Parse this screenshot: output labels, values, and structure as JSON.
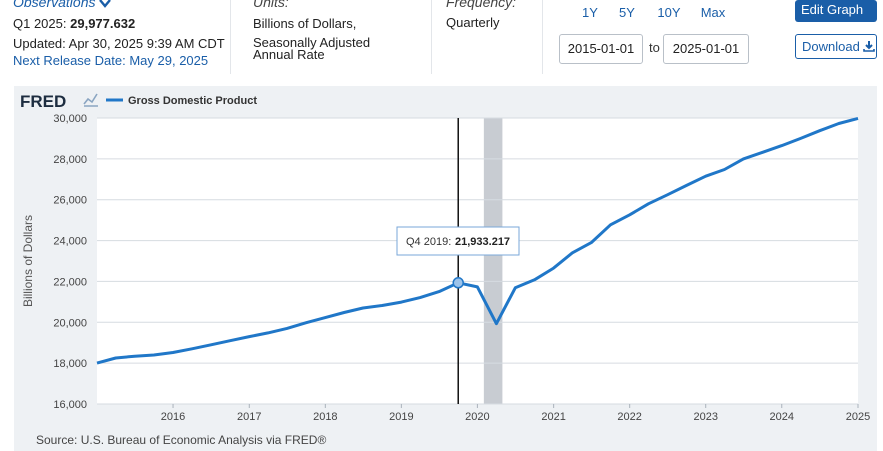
{
  "header": {
    "observations_title": "Observations",
    "obs_period": "Q1 2025:",
    "obs_value": "29,977.632",
    "updated": "Updated: Apr 30, 2025 9:39 AM CDT",
    "next_release": "Next Release Date: May 29, 2025",
    "units_title": "Units:",
    "units_line1": "Billions of Dollars,",
    "units_line2": "Seasonally Adjusted",
    "units_line3": "Annual Rate",
    "frequency_title": "Frequency:",
    "frequency_value": "Quarterly",
    "range_buttons": [
      "1Y",
      "5Y",
      "10Y",
      "Max"
    ],
    "date_from": "2015-01-01",
    "date_to_label": "to",
    "date_to": "2025-01-01",
    "edit_graph": "Edit Graph",
    "download": "Download"
  },
  "colors": {
    "accent": "#1a5ea8",
    "series": "#2077c8",
    "recession": "#c8ccd2",
    "panel": "#eef1f4"
  },
  "chart_data": {
    "type": "line",
    "brand": "FRED",
    "legend": [
      "Gross Domestic Product"
    ],
    "ylabel": "Billions of Dollars",
    "xlabel": "",
    "ylim": [
      16000,
      30000
    ],
    "yticks": [
      "16,000",
      "18,000",
      "20,000",
      "22,000",
      "24,000",
      "26,000",
      "28,000",
      "30,000"
    ],
    "xticks": [
      "2016",
      "2017",
      "2018",
      "2019",
      "2020",
      "2021",
      "2022",
      "2023",
      "2024",
      "2025"
    ],
    "grid": true,
    "source": "Source: U.S. Bureau of Economic Analysis via FRED®",
    "tooltip": {
      "label": "Q4 2019:",
      "value": "21,933.217",
      "date": "2019-10-01"
    },
    "recession_band": [
      "2020-02-01",
      "2020-04-30"
    ],
    "series": [
      {
        "name": "Gross Domestic Product",
        "x": [
          "2015-01-01",
          "2015-04-01",
          "2015-07-01",
          "2015-10-01",
          "2016-01-01",
          "2016-04-01",
          "2016-07-01",
          "2016-10-01",
          "2017-01-01",
          "2017-04-01",
          "2017-07-01",
          "2017-10-01",
          "2018-01-01",
          "2018-04-01",
          "2018-07-01",
          "2018-10-01",
          "2019-01-01",
          "2019-04-01",
          "2019-07-01",
          "2019-10-01",
          "2020-01-01",
          "2020-04-01",
          "2020-07-01",
          "2020-10-01",
          "2021-01-01",
          "2021-04-01",
          "2021-07-01",
          "2021-10-01",
          "2022-01-01",
          "2022-04-01",
          "2022-07-01",
          "2022-10-01",
          "2023-01-01",
          "2023-04-01",
          "2023-07-01",
          "2023-10-01",
          "2024-01-01",
          "2024-04-01",
          "2024-07-01",
          "2024-10-01",
          "2025-01-01"
        ],
        "values": [
          18000,
          18250,
          18340,
          18400,
          18520,
          18700,
          18900,
          19100,
          19300,
          19480,
          19700,
          19980,
          20230,
          20480,
          20700,
          20820,
          20990,
          21210,
          21500,
          21933,
          21730,
          19930,
          21690,
          22080,
          22650,
          23400,
          23900,
          24770,
          25260,
          25800,
          26240,
          26700,
          27150,
          27480,
          28000,
          28320,
          28650,
          29000,
          29380,
          29730,
          29978
        ]
      }
    ]
  }
}
